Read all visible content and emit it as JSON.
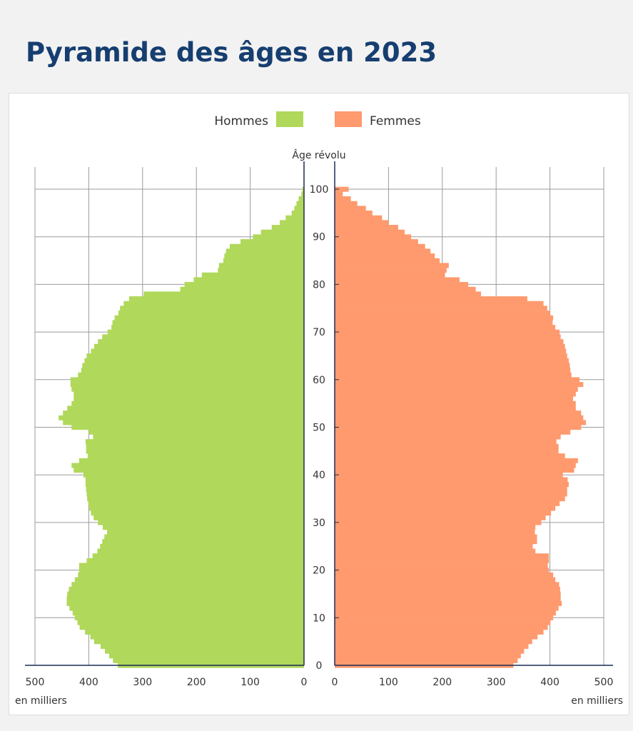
{
  "page": {
    "title": "Pyramide des âges en 2023"
  },
  "chart_data": {
    "type": "bar",
    "orientation": "population-pyramid",
    "age_axis_label": "Âge révolu",
    "unit_label": "en milliers",
    "ages": [
      0,
      1,
      2,
      3,
      4,
      5,
      6,
      7,
      8,
      9,
      10,
      11,
      12,
      13,
      14,
      15,
      16,
      17,
      18,
      19,
      20,
      21,
      22,
      23,
      24,
      25,
      26,
      27,
      28,
      29,
      30,
      31,
      32,
      33,
      34,
      35,
      36,
      37,
      38,
      39,
      40,
      41,
      42,
      43,
      44,
      45,
      46,
      47,
      48,
      49,
      50,
      51,
      52,
      53,
      54,
      55,
      56,
      57,
      58,
      59,
      60,
      61,
      62,
      63,
      64,
      65,
      66,
      67,
      68,
      69,
      70,
      71,
      72,
      73,
      74,
      75,
      76,
      77,
      78,
      79,
      80,
      81,
      82,
      83,
      84,
      85,
      86,
      87,
      88,
      89,
      90,
      91,
      92,
      93,
      94,
      95,
      96,
      97,
      98,
      99,
      100
    ],
    "series": [
      {
        "name": "Hommes",
        "color": "#b0d85a",
        "side": "left",
        "values": [
          346,
          355,
          362,
          370,
          378,
          390,
          397,
          407,
          417,
          421,
          426,
          430,
          436,
          441,
          441,
          440,
          437,
          432,
          426,
          420,
          418,
          418,
          404,
          393,
          384,
          379,
          375,
          371,
          366,
          374,
          383,
          391,
          396,
          399,
          401,
          403,
          404,
          405,
          406,
          406,
          410,
          428,
          432,
          418,
          402,
          405,
          405,
          406,
          392,
          400,
          432,
          448,
          456,
          448,
          440,
          432,
          428,
          428,
          432,
          434,
          434,
          420,
          414,
          412,
          408,
          404,
          396,
          390,
          383,
          375,
          365,
          358,
          356,
          352,
          345,
          342,
          335,
          325,
          298,
          230,
          222,
          205,
          190,
          160,
          158,
          150,
          148,
          145,
          138,
          118,
          95,
          80,
          60,
          45,
          34,
          23,
          18,
          14,
          10,
          5,
          3
        ]
      },
      {
        "name": "Femmes",
        "color": "#fe9a6e",
        "side": "right",
        "values": [
          332,
          340,
          346,
          352,
          360,
          367,
          377,
          388,
          396,
          401,
          406,
          411,
          416,
          422,
          420,
          420,
          419,
          417,
          410,
          406,
          398,
          396,
          398,
          398,
          373,
          368,
          376,
          376,
          372,
          373,
          384,
          392,
          402,
          410,
          418,
          428,
          432,
          432,
          435,
          433,
          424,
          445,
          448,
          452,
          428,
          416,
          416,
          412,
          420,
          438,
          458,
          467,
          462,
          458,
          448,
          448,
          443,
          448,
          452,
          462,
          455,
          440,
          438,
          437,
          435,
          432,
          430,
          428,
          425,
          420,
          418,
          410,
          405,
          406,
          400,
          395,
          388,
          358,
          272,
          262,
          248,
          232,
          205,
          208,
          212,
          195,
          186,
          178,
          168,
          155,
          142,
          130,
          118,
          100,
          88,
          70,
          58,
          42,
          30,
          15,
          26
        ]
      }
    ],
    "x_axis_left": {
      "min": 0,
      "max": 500,
      "ticks": [
        500,
        400,
        300,
        200,
        100,
        0
      ]
    },
    "x_axis_right": {
      "min": 0,
      "max": 500,
      "ticks": [
        0,
        100,
        200,
        300,
        400,
        500
      ]
    },
    "y_axis": {
      "min": 0,
      "max": 100,
      "ticks": [
        0,
        10,
        20,
        30,
        40,
        50,
        60,
        70,
        80,
        90,
        100
      ]
    },
    "grid": true,
    "legend_position": "top-center",
    "colors": {
      "title": "#163e70",
      "axis": "#1c2b57",
      "grid": "#9b9b9b"
    }
  }
}
